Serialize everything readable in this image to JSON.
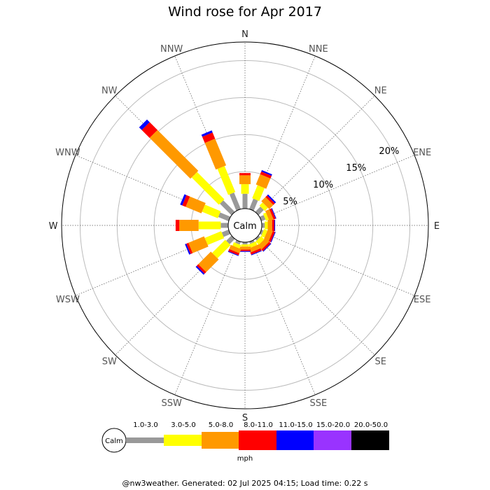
{
  "chart_data": {
    "type": "wind-rose",
    "title": "Wind rose for Apr 2017",
    "directions": [
      "N",
      "NNE",
      "NE",
      "ENE",
      "E",
      "ESE",
      "SE",
      "SSE",
      "S",
      "SSW",
      "SW",
      "WSW",
      "W",
      "WNW",
      "NW",
      "NNW"
    ],
    "radial_ticks": [
      "5%",
      "10%",
      "15%",
      "20%"
    ],
    "radial_tick_values": [
      5,
      10,
      15,
      20
    ],
    "radial_max": 22.5,
    "calm_label": "Calm",
    "speed_unit": "mph",
    "speed_bins": [
      {
        "label": "1.0-3.0",
        "color": "#999999"
      },
      {
        "label": "3.0-5.0",
        "color": "#ffff00"
      },
      {
        "label": "5.0-8.0",
        "color": "#ff9900"
      },
      {
        "label": "8.0-11.0",
        "color": "#ff0000"
      },
      {
        "label": "11.0-15.0",
        "color": "#0000ff"
      },
      {
        "label": "15.0-20.0",
        "color": "#9933ff"
      },
      {
        "label": "20.0-50.0",
        "color": "#000000"
      }
    ],
    "series_by_direction": [
      {
        "dir": "N",
        "values": [
          2.0,
          1.3,
          1.2,
          0.3,
          0.0,
          0,
          0
        ]
      },
      {
        "dir": "NNE",
        "values": [
          1.5,
          1.9,
          1.5,
          0.4,
          0.2,
          0,
          0
        ]
      },
      {
        "dir": "NE",
        "values": [
          1.0,
          0.6,
          0.8,
          0.3,
          0.2,
          0,
          0
        ]
      },
      {
        "dir": "ENE",
        "values": [
          0.6,
          0.4,
          0.6,
          0.3,
          0.1,
          0,
          0
        ]
      },
      {
        "dir": "E",
        "values": [
          0.4,
          0.4,
          0.6,
          0.3,
          0.1,
          0,
          0
        ]
      },
      {
        "dir": "ESE",
        "values": [
          0.3,
          0.5,
          0.7,
          0.3,
          0.1,
          0,
          0
        ]
      },
      {
        "dir": "SE",
        "values": [
          0.3,
          0.6,
          0.7,
          0.3,
          0.1,
          0,
          0
        ]
      },
      {
        "dir": "SSE",
        "values": [
          0.3,
          0.5,
          0.6,
          0.3,
          0.1,
          0,
          0
        ]
      },
      {
        "dir": "S",
        "values": [
          0.3,
          0.3,
          0.4,
          0.2,
          0.1,
          0,
          0
        ]
      },
      {
        "dir": "SSW",
        "values": [
          0.4,
          0.5,
          0.6,
          0.3,
          0.1,
          0,
          0
        ]
      },
      {
        "dir": "SW",
        "values": [
          1.0,
          2.5,
          2.4,
          0.3,
          0.2,
          0,
          0
        ]
      },
      {
        "dir": "WSW",
        "values": [
          1.0,
          2.4,
          2.3,
          0.3,
          0.2,
          0,
          0
        ]
      },
      {
        "dir": "W",
        "values": [
          1.0,
          3.0,
          2.6,
          0.5,
          0.0,
          0,
          0
        ]
      },
      {
        "dir": "WNW",
        "values": [
          1.5,
          2.3,
          2.3,
          0.5,
          0.3,
          0,
          0
        ]
      },
      {
        "dir": "NW",
        "values": [
          2.2,
          5.2,
          7.8,
          1.5,
          0.5,
          0,
          0
        ]
      },
      {
        "dir": "NNW",
        "values": [
          2.4,
          3.8,
          3.9,
          0.9,
          0.3,
          0,
          0
        ]
      }
    ]
  },
  "footer": "@nw3weather. Generated: 02 Jul 2025 04:15; Load time: 0.22 s"
}
